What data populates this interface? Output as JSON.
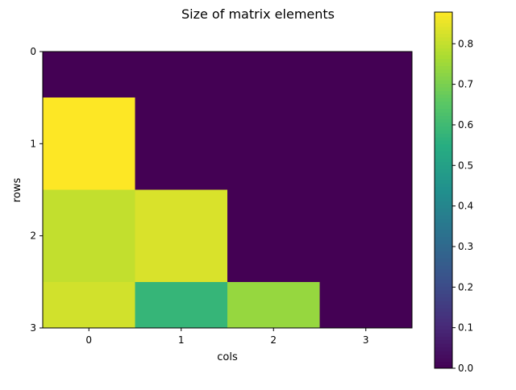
{
  "chart_data": {
    "type": "heatmap",
    "title": "Size of matrix elements",
    "xlabel": "cols",
    "ylabel": "rows",
    "x_ticks": [
      0,
      1,
      2,
      3
    ],
    "y_ticks": [
      0,
      1,
      2,
      3
    ],
    "x_tick_labels": [
      "0",
      "1",
      "2",
      "3"
    ],
    "y_tick_labels": [
      "0",
      "1",
      "2",
      "3"
    ],
    "xlim": [
      -0.5,
      3.5
    ],
    "ylim": [
      0,
      3
    ],
    "values": [
      [
        0.0,
        0.0,
        0.0,
        0.0
      ],
      [
        0.878,
        0.0,
        0.0,
        0.0
      ],
      [
        0.8,
        0.83,
        0.0,
        0.0
      ],
      [
        0.82,
        0.58,
        0.74,
        0.0
      ]
    ],
    "colormap": "viridis",
    "color_range": [
      0.0,
      0.878
    ],
    "colorbar_ticks": [
      0.0,
      0.1,
      0.2,
      0.3,
      0.4,
      0.5,
      0.6,
      0.7,
      0.8
    ],
    "colorbar_tick_labels": [
      "0.0",
      "0.1",
      "0.2",
      "0.3",
      "0.4",
      "0.5",
      "0.6",
      "0.7",
      "0.8"
    ],
    "grid": false
  }
}
